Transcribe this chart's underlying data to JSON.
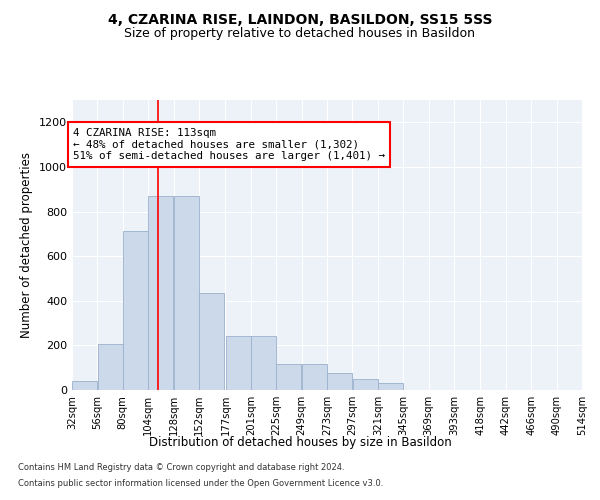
{
  "title1": "4, CZARINA RISE, LAINDON, BASILDON, SS15 5SS",
  "title2": "Size of property relative to detached houses in Basildon",
  "xlabel": "Distribution of detached houses by size in Basildon",
  "ylabel": "Number of detached properties",
  "footer1": "Contains HM Land Registry data © Crown copyright and database right 2024.",
  "footer2": "Contains public sector information licensed under the Open Government Licence v3.0.",
  "annotation_line1": "4 CZARINA RISE: 113sqm",
  "annotation_line2": "← 48% of detached houses are smaller (1,302)",
  "annotation_line3": "51% of semi-detached houses are larger (1,401) →",
  "bar_color": "#ccd9ea",
  "bar_edge_color": "#9ab0cc",
  "red_line_x": 113,
  "bin_labels": [
    "32sqm",
    "56sqm",
    "80sqm",
    "104sqm",
    "128sqm",
    "152sqm",
    "177sqm",
    "201sqm",
    "225sqm",
    "249sqm",
    "273sqm",
    "297sqm",
    "321sqm",
    "345sqm",
    "369sqm",
    "393sqm",
    "418sqm",
    "442sqm",
    "466sqm",
    "490sqm",
    "514sqm"
  ],
  "bins_left": [
    32,
    56,
    80,
    104,
    128,
    152,
    177,
    201,
    225,
    249,
    273,
    297,
    321,
    345,
    369,
    393,
    418,
    442,
    466,
    490
  ],
  "bin_width": 24,
  "values": [
    42,
    205,
    715,
    870,
    870,
    435,
    240,
    240,
    115,
    115,
    75,
    50,
    30,
    0,
    0,
    0,
    0,
    0,
    0,
    0
  ],
  "ylim": [
    0,
    1300
  ],
  "yticks": [
    0,
    200,
    400,
    600,
    800,
    1000,
    1200
  ],
  "background_color": "#edf2f9",
  "grid_color": "#ffffff",
  "title1_fontsize": 10,
  "title2_fontsize": 9
}
